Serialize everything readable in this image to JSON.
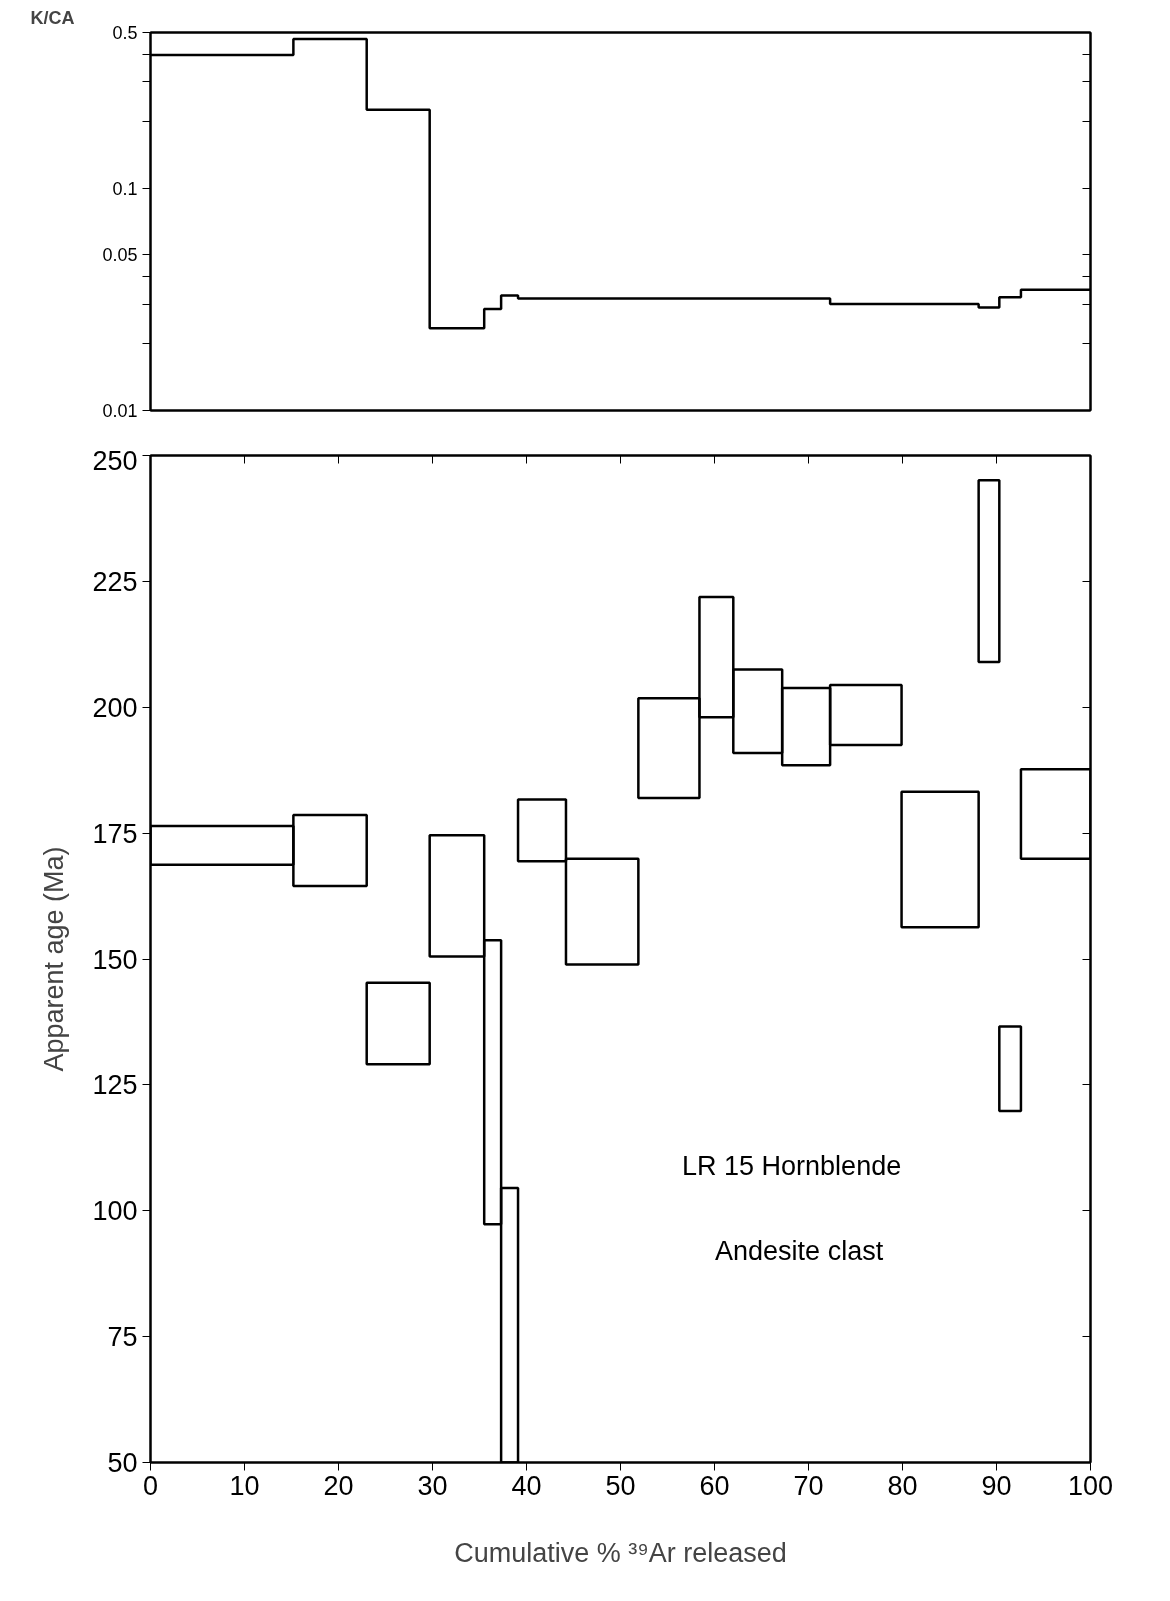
{
  "chart_data": [
    {
      "type": "step",
      "ylabel": "K/CA",
      "log": "y",
      "tick_labels": "y",
      "xlim": [
        0,
        100
      ],
      "ylim": [
        0.01,
        0.5
      ],
      "yticks": [
        0.01,
        {
          "value": 0.02,
          "label": null
        },
        {
          "value": 0.03,
          "label": null
        },
        {
          "value": 0.04,
          "label": null
        },
        {
          "value": 0.05,
          "label": "0.05"
        },
        {
          "value": 0.1,
          "label": "0.1"
        },
        {
          "value": 0.2,
          "label": null
        },
        {
          "value": 0.3,
          "label": null
        },
        {
          "value": 0.4,
          "label": null
        },
        {
          "value": 0.5,
          "label": "0.5"
        }
      ],
      "x": [
        0,
        15.2,
        23.0,
        29.7,
        35.5,
        37.3,
        39.1,
        72.3,
        88.1,
        90.3,
        92.6,
        100
      ],
      "values": [
        0.396,
        0.467,
        0.225,
        0.0234,
        0.0286,
        0.0329,
        0.0319,
        0.0301,
        0.029,
        0.0323,
        0.0349,
        0.0349
      ],
      "color": "#000000"
    },
    {
      "type": "histogram",
      "xlabel": "Cumulative % ³⁹Ar released",
      "ylabel": "Apparent age (Ma)",
      "xlim": [
        0,
        100
      ],
      "xticks": [
        0,
        10,
        20,
        30,
        40,
        50,
        60,
        70,
        80,
        90,
        100
      ],
      "ylim": [
        50,
        250
      ],
      "yticks": [
        50,
        75,
        100,
        125,
        150,
        175,
        200,
        225,
        250
      ],
      "bins": [
        0,
        15.2,
        23.0,
        29.7,
        35.5,
        37.3,
        39.1,
        44.2,
        51.9,
        58.4,
        62.0,
        67.2,
        72.3,
        79.9,
        88.1,
        90.3,
        92.6,
        100
      ],
      "base": [
        168.7,
        164.5,
        129.1,
        150.5,
        97.3,
        50,
        169.4,
        148.9,
        182.0,
        198.0,
        190.9,
        188.5,
        192.5,
        156.3,
        209.0,
        119.8,
        169.9
      ],
      "values": [
        7.7,
        14.1,
        16.2,
        24.1,
        56.4,
        54.5,
        12.3,
        21.0,
        19.8,
        23.9,
        16.6,
        15.3,
        11.9,
        26.9,
        36.1,
        16.8,
        17.8
      ],
      "color": "#000000",
      "annotations": [
        "LR 15   Hornblende",
        "Andesite clast"
      ]
    }
  ]
}
